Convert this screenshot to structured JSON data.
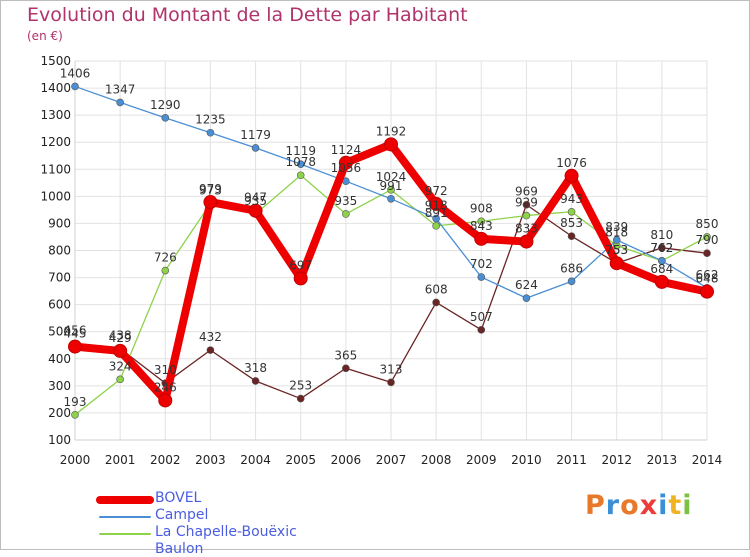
{
  "chart_data": {
    "type": "line",
    "title": "Evolution du Montant de la Dette par Habitant",
    "unit": "(en €)",
    "x": [
      "2000",
      "2001",
      "2002",
      "2003",
      "2004",
      "2005",
      "2006",
      "2007",
      "2008",
      "2009",
      "2010",
      "2011",
      "2012",
      "2013",
      "2014"
    ],
    "ylim": [
      100,
      1500
    ],
    "yticks": [
      100,
      200,
      300,
      400,
      500,
      600,
      700,
      800,
      900,
      1000,
      1100,
      1200,
      1300,
      1400,
      1500
    ],
    "grid": true,
    "legend": "bottom-left",
    "series": [
      {
        "name": "BOVEL",
        "color": "#ee0000",
        "values": [
          445,
          429,
          246,
          979,
          947,
          697,
          1124,
          1192,
          972,
          843,
          833,
          1076,
          753,
          684,
          648
        ]
      },
      {
        "name": "Campel",
        "color": "#4a8fd4",
        "values": [
          1406,
          1347,
          1290,
          1235,
          1179,
          1119,
          1056,
          991,
          918,
          702,
          624,
          686,
          839,
          762,
          662
        ]
      },
      {
        "name": "La Chapelle-Bouëxic",
        "color": "#8ed24a",
        "values": [
          193,
          324,
          726,
          973,
          935,
          1078,
          935,
          1024,
          891,
          908,
          929,
          943,
          818,
          762,
          850
        ]
      },
      {
        "name": "Baulon",
        "color": "#6b2424",
        "values": [
          456,
          438,
          310,
          432,
          318,
          253,
          365,
          313,
          608,
          507,
          969,
          853,
          753,
          810,
          790
        ]
      }
    ]
  },
  "logo": {
    "text": "Proxiti",
    "colors": [
      "#e8792b",
      "#3a8fd6",
      "#e8792b",
      "#ef3a3a",
      "#3a8fd6",
      "#f2b322",
      "#7cc242"
    ]
  }
}
